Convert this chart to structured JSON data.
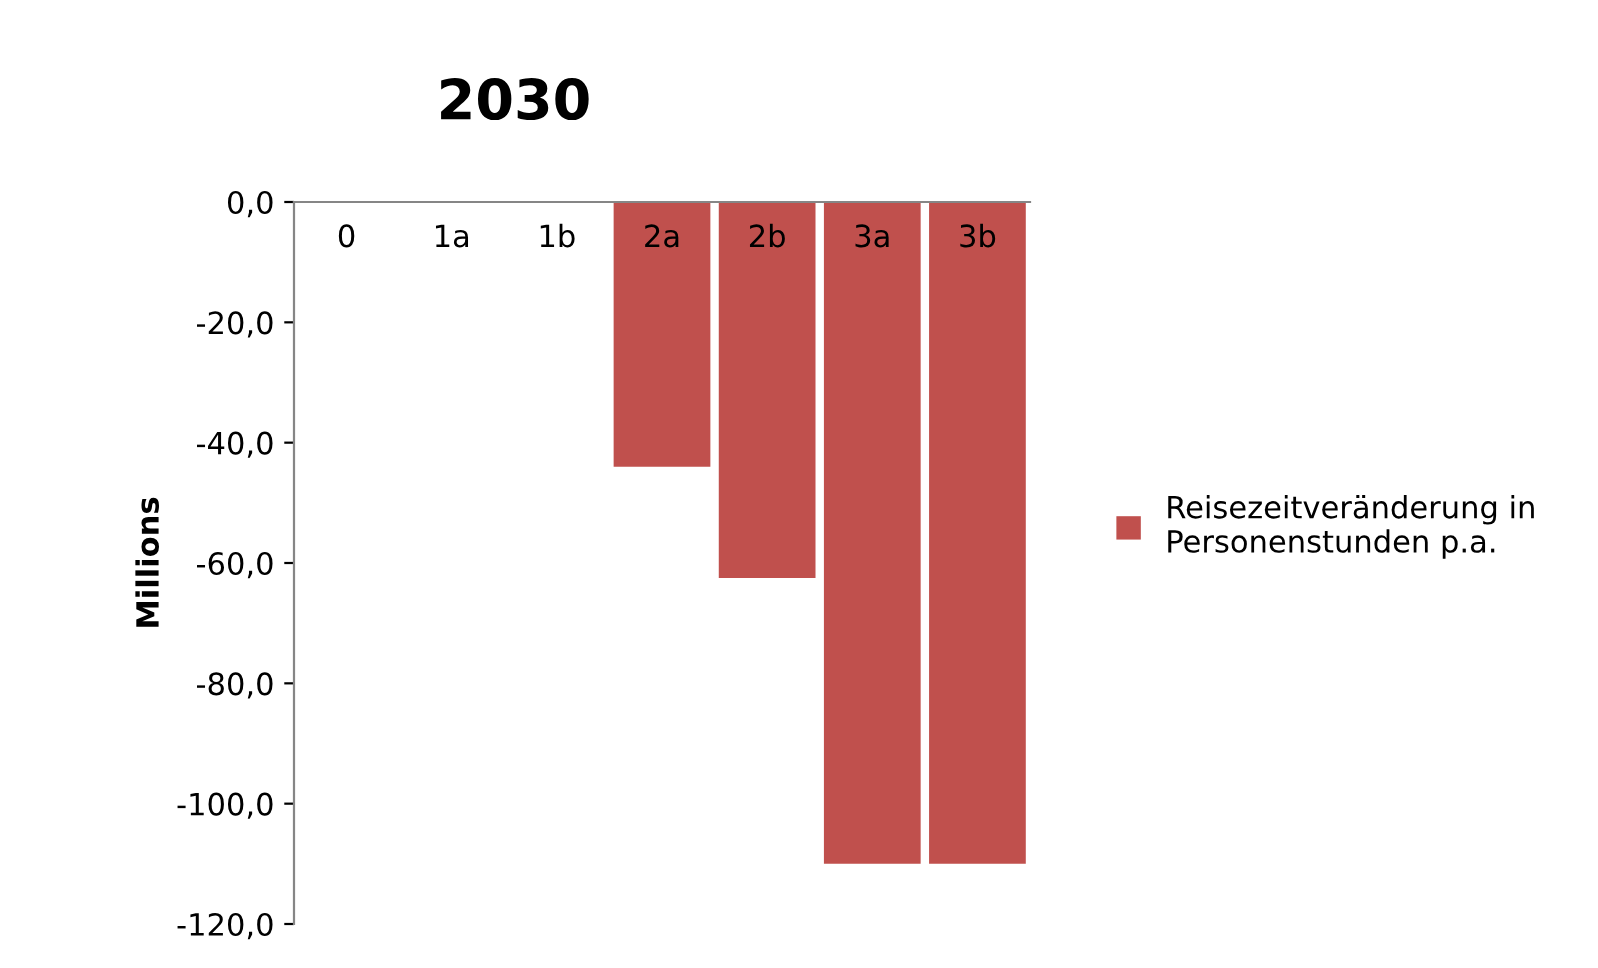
{
  "chart_data": {
    "type": "bar",
    "title": "2030",
    "ylabel": "Millions",
    "categories": [
      "0",
      "1a",
      "1b",
      "2a",
      "2b",
      "3a",
      "3b"
    ],
    "series": [
      {
        "name": "Reisezeitveränderung in\nPersonenstunden p.a.",
        "color": "#c0504d",
        "values": [
          0,
          0,
          0,
          -44,
          -62.5,
          -110,
          -110
        ]
      }
    ],
    "ylim": [
      -120,
      0
    ],
    "yticks": [
      {
        "value": 0,
        "label": "0,0"
      },
      {
        "value": -20,
        "label": "-20,0"
      },
      {
        "value": -40,
        "label": "-40,0"
      },
      {
        "value": -60,
        "label": "-60,0"
      },
      {
        "value": -80,
        "label": "-80,0"
      },
      {
        "value": -100,
        "label": "-100,0"
      },
      {
        "value": -120,
        "label": "-120,0"
      }
    ],
    "grid": false,
    "legend": "right"
  }
}
